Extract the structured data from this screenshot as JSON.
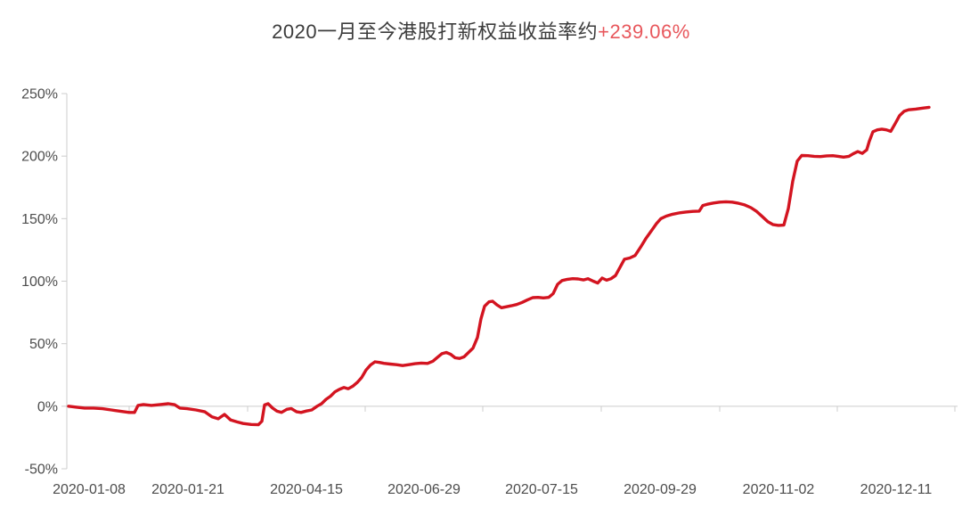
{
  "title": {
    "text": "2020一月至今港股打新权益收益率约",
    "highlight": "+239.06%"
  },
  "colors": {
    "background": "#ffffff",
    "title_text": "#3c3c3c",
    "title_accent": "#e8575c",
    "axis": "#cccccc",
    "axis_label": "#4d4d4d",
    "line": "#d31420"
  },
  "chart_data": {
    "type": "line",
    "title": "2020一月至今港股打新权益收益率约+239.06%",
    "xlabel": "",
    "ylabel": "",
    "ylim": [
      -50,
      250
    ],
    "y_unit": "%",
    "y_ticks": [
      250,
      200,
      150,
      100,
      50,
      0,
      -50
    ],
    "grid": false,
    "legend": false,
    "x_labels": [
      "2020-01-08",
      "2020-01-21",
      "2020-04-15",
      "2020-06-29",
      "2020-07-15",
      "2020-09-29",
      "2020-11-02",
      "2020-12-11"
    ],
    "x_label_positions": [
      0.025,
      0.136,
      0.269,
      0.401,
      0.533,
      0.666,
      0.799,
      0.931
    ],
    "x_tick_positions": [
      0.07,
      0.203,
      0.335,
      0.467,
      0.6,
      0.733,
      0.865,
      0.997
    ],
    "series": [
      {
        "name": "港股打新权益收益率",
        "color": "#d31420",
        "final_value": "+239.06%",
        "points": [
          [
            0.002,
            0
          ],
          [
            0.01,
            -0.7
          ],
          [
            0.02,
            -1.5
          ],
          [
            0.03,
            -1.5
          ],
          [
            0.04,
            -2
          ],
          [
            0.05,
            -3
          ],
          [
            0.06,
            -4
          ],
          [
            0.07,
            -5
          ],
          [
            0.076,
            -5
          ],
          [
            0.08,
            0.7
          ],
          [
            0.086,
            1.4
          ],
          [
            0.095,
            0.7
          ],
          [
            0.105,
            1.4
          ],
          [
            0.114,
            2
          ],
          [
            0.121,
            1.2
          ],
          [
            0.127,
            -1.5
          ],
          [
            0.135,
            -2
          ],
          [
            0.145,
            -3
          ],
          [
            0.155,
            -4.5
          ],
          [
            0.163,
            -8.5
          ],
          [
            0.17,
            -10
          ],
          [
            0.177,
            -6.5
          ],
          [
            0.184,
            -11
          ],
          [
            0.191,
            -12.5
          ],
          [
            0.198,
            -13.8
          ],
          [
            0.207,
            -14.6
          ],
          [
            0.215,
            -14.8
          ],
          [
            0.219,
            -12
          ],
          [
            0.222,
            1
          ],
          [
            0.226,
            2
          ],
          [
            0.231,
            -1.5
          ],
          [
            0.236,
            -4
          ],
          [
            0.241,
            -5
          ],
          [
            0.247,
            -2.5
          ],
          [
            0.252,
            -1.8
          ],
          [
            0.258,
            -4.5
          ],
          [
            0.263,
            -5
          ],
          [
            0.269,
            -3.8
          ],
          [
            0.275,
            -3
          ],
          [
            0.281,
            0
          ],
          [
            0.286,
            2
          ],
          [
            0.291,
            5.5
          ],
          [
            0.296,
            8
          ],
          [
            0.301,
            11.5
          ],
          [
            0.306,
            13.5
          ],
          [
            0.311,
            15
          ],
          [
            0.316,
            14
          ],
          [
            0.321,
            16
          ],
          [
            0.326,
            19
          ],
          [
            0.331,
            23
          ],
          [
            0.336,
            29
          ],
          [
            0.341,
            33
          ],
          [
            0.346,
            35.5
          ],
          [
            0.351,
            35
          ],
          [
            0.356,
            34.3
          ],
          [
            0.363,
            33.7
          ],
          [
            0.37,
            33.2
          ],
          [
            0.377,
            32.5
          ],
          [
            0.384,
            33.2
          ],
          [
            0.391,
            34
          ],
          [
            0.398,
            34.5
          ],
          [
            0.405,
            34.2
          ],
          [
            0.411,
            36
          ],
          [
            0.416,
            39
          ],
          [
            0.421,
            42
          ],
          [
            0.426,
            43
          ],
          [
            0.431,
            41.5
          ],
          [
            0.436,
            38.7
          ],
          [
            0.441,
            38.2
          ],
          [
            0.446,
            39.5
          ],
          [
            0.451,
            43
          ],
          [
            0.456,
            46.5
          ],
          [
            0.461,
            55
          ],
          [
            0.465,
            70
          ],
          [
            0.469,
            80
          ],
          [
            0.474,
            83.5
          ],
          [
            0.478,
            84
          ],
          [
            0.483,
            81
          ],
          [
            0.488,
            78.8
          ],
          [
            0.493,
            79.5
          ],
          [
            0.499,
            80.3
          ],
          [
            0.505,
            81.3
          ],
          [
            0.511,
            83
          ],
          [
            0.517,
            85
          ],
          [
            0.523,
            86.8
          ],
          [
            0.529,
            87
          ],
          [
            0.535,
            86.6
          ],
          [
            0.541,
            87
          ],
          [
            0.546,
            90
          ],
          [
            0.551,
            97.5
          ],
          [
            0.556,
            100.5
          ],
          [
            0.562,
            101.5
          ],
          [
            0.568,
            102
          ],
          [
            0.574,
            101.8
          ],
          [
            0.58,
            101
          ],
          [
            0.585,
            102
          ],
          [
            0.591,
            100
          ],
          [
            0.596,
            98.5
          ],
          [
            0.601,
            102.5
          ],
          [
            0.606,
            100.8
          ],
          [
            0.611,
            102
          ],
          [
            0.616,
            104.5
          ],
          [
            0.621,
            111
          ],
          [
            0.626,
            117.5
          ],
          [
            0.632,
            118.5
          ],
          [
            0.638,
            120.5
          ],
          [
            0.644,
            127
          ],
          [
            0.65,
            134
          ],
          [
            0.656,
            140
          ],
          [
            0.662,
            146
          ],
          [
            0.667,
            150
          ],
          [
            0.673,
            152
          ],
          [
            0.68,
            153.5
          ],
          [
            0.687,
            154.5
          ],
          [
            0.695,
            155.3
          ],
          [
            0.703,
            155.8
          ],
          [
            0.71,
            156
          ],
          [
            0.714,
            160.5
          ],
          [
            0.719,
            161.5
          ],
          [
            0.726,
            162.5
          ],
          [
            0.733,
            163.2
          ],
          [
            0.74,
            163.5
          ],
          [
            0.747,
            163.2
          ],
          [
            0.754,
            162.3
          ],
          [
            0.761,
            161
          ],
          [
            0.768,
            158.8
          ],
          [
            0.774,
            156
          ],
          [
            0.781,
            151.5
          ],
          [
            0.787,
            147.5
          ],
          [
            0.793,
            145.2
          ],
          [
            0.799,
            144.6
          ],
          [
            0.805,
            144.8
          ],
          [
            0.81,
            158
          ],
          [
            0.815,
            180
          ],
          [
            0.82,
            196
          ],
          [
            0.825,
            200.5
          ],
          [
            0.832,
            200.3
          ],
          [
            0.839,
            199.8
          ],
          [
            0.846,
            199.6
          ],
          [
            0.853,
            200.2
          ],
          [
            0.86,
            200.3
          ],
          [
            0.866,
            199.8
          ],
          [
            0.872,
            199.2
          ],
          [
            0.878,
            199.8
          ],
          [
            0.883,
            202
          ],
          [
            0.888,
            203.6
          ],
          [
            0.893,
            202.2
          ],
          [
            0.898,
            205
          ],
          [
            0.901,
            212
          ],
          [
            0.905,
            219.5
          ],
          [
            0.91,
            221
          ],
          [
            0.915,
            221.6
          ],
          [
            0.92,
            221
          ],
          [
            0.925,
            219.8
          ],
          [
            0.93,
            226
          ],
          [
            0.935,
            232.5
          ],
          [
            0.94,
            235.8
          ],
          [
            0.945,
            237
          ],
          [
            0.953,
            237.6
          ],
          [
            0.961,
            238.4
          ],
          [
            0.968,
            239.06
          ]
        ]
      }
    ]
  }
}
